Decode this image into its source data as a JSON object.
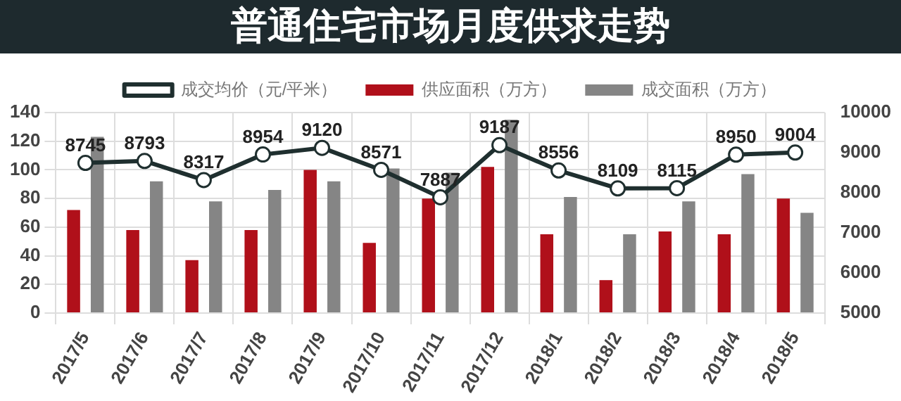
{
  "chart_data": {
    "type": "bar",
    "title": "普通住宅市场月度供求走势",
    "categories": [
      "2017/5",
      "2017/6",
      "2017/7",
      "2017/8",
      "2017/9",
      "2017/10",
      "2017/11",
      "2017/12",
      "2018/1",
      "2018/2",
      "2018/3",
      "2018/4",
      "2018/5"
    ],
    "series": [
      {
        "name": "供应面积（万方）",
        "color": "#b0101a",
        "values": [
          72,
          58,
          37,
          58,
          100,
          49,
          80,
          102,
          55,
          23,
          57,
          55,
          80
        ]
      },
      {
        "name": "成交面积（万方）",
        "color": "#858585",
        "values": [
          123,
          92,
          78,
          86,
          92,
          101,
          98,
          135,
          81,
          55,
          78,
          97,
          70
        ]
      },
      {
        "name": "成交均价（元/平米）",
        "type": "line",
        "axis": "y2",
        "color": "#1f2f2f",
        "marker": "circle",
        "values": [
          8745,
          8793,
          8317,
          8954,
          9120,
          8571,
          7887,
          9187,
          8556,
          8109,
          8115,
          8950,
          9004
        ],
        "value_labels": [
          "8745",
          "8793",
          "8317",
          "8954",
          "9120",
          "8571",
          "7887",
          "9187",
          "8556",
          "8109",
          "8115",
          "8950",
          "9004"
        ]
      }
    ],
    "ylim": [
      0,
      140
    ],
    "yticks": [
      0,
      20,
      40,
      60,
      80,
      100,
      120,
      140
    ],
    "y2lim": [
      5000,
      10000
    ],
    "y2ticks": [
      5000,
      6000,
      7000,
      8000,
      9000,
      10000
    ],
    "grid": true,
    "legend": "top"
  }
}
